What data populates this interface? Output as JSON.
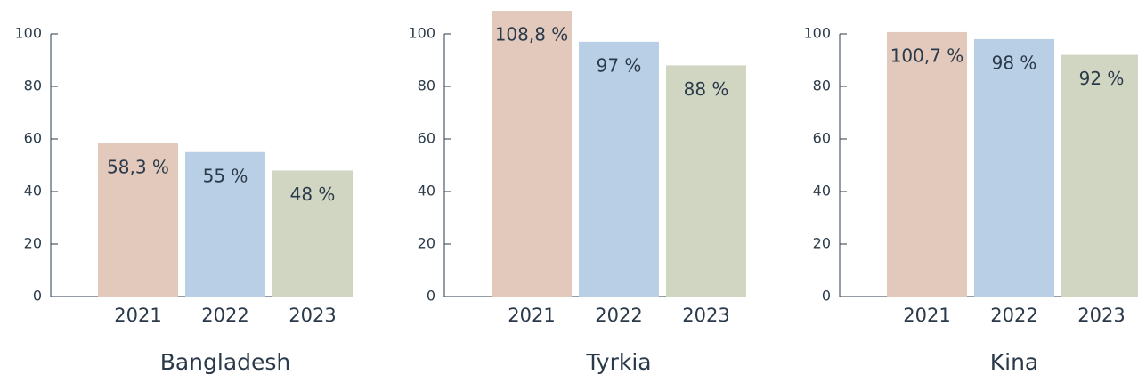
{
  "chart_data": [
    {
      "type": "bar",
      "title": "Bangladesh",
      "categories": [
        "2021",
        "2022",
        "2023"
      ],
      "values": [
        58.3,
        55,
        48
      ],
      "value_labels": [
        "58,3 %",
        "55 %",
        "48 %"
      ],
      "colors": [
        "#e2c9bb",
        "#b9cfe5",
        "#d1d6c3"
      ],
      "ylim": [
        0,
        100
      ],
      "yticks": [
        0,
        20,
        40,
        60,
        80,
        100
      ]
    },
    {
      "type": "bar",
      "title": "Tyrkia",
      "categories": [
        "2021",
        "2022",
        "2023"
      ],
      "values": [
        108.8,
        97,
        88
      ],
      "value_labels": [
        "108,8 %",
        "97 %",
        "88 %"
      ],
      "colors": [
        "#e2c9bb",
        "#b9cfe5",
        "#d1d6c3"
      ],
      "ylim": [
        0,
        100
      ],
      "yticks": [
        0,
        20,
        40,
        60,
        80,
        100
      ]
    },
    {
      "type": "bar",
      "title": "Kina",
      "categories": [
        "2021",
        "2022",
        "2023"
      ],
      "values": [
        100.7,
        98,
        92
      ],
      "value_labels": [
        "100,7 %",
        "98 %",
        "92 %"
      ],
      "colors": [
        "#e2c9bb",
        "#b9cfe5",
        "#d1d6c3"
      ],
      "ylim": [
        0,
        100
      ],
      "yticks": [
        0,
        20,
        40,
        60,
        80,
        100
      ]
    }
  ]
}
